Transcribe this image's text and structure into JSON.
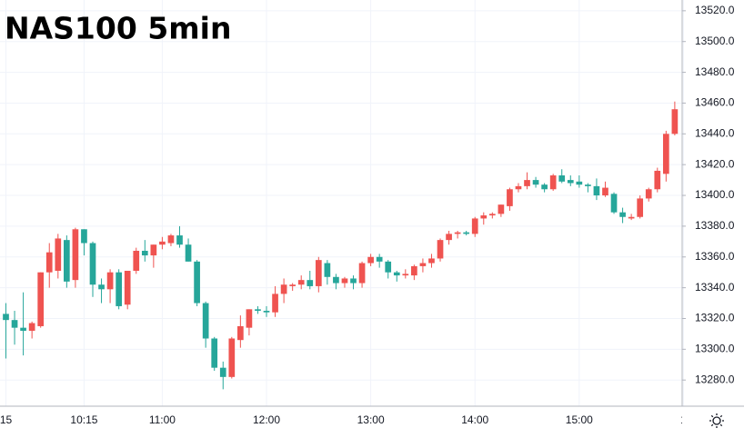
{
  "chart_data": {
    "type": "candlestick",
    "title": "NAS100 5min",
    "up_color": "#ef5350",
    "down_color": "#26a69a",
    "grid": true,
    "open": [
      13323,
      13319,
      13314,
      13312,
      13315,
      13350,
      13351,
      13371,
      13345,
      13378,
      13369,
      13342,
      13339,
      13350,
      13329,
      13351,
      13364,
      13361,
      13368,
      13369,
      13374,
      13368,
      13357,
      13330,
      13307,
      13288,
      13282,
      13306,
      13314,
      13326,
      13325,
      13324,
      13336,
      13341,
      13342,
      13345,
      13341,
      13356,
      13347,
      13343,
      13346,
      13343,
      13356,
      13360,
      13357,
      13350,
      13348,
      13348,
      13354,
      13356,
      13359,
      13371,
      13375,
      13376,
      13375,
      13385,
      13387,
      13388,
      13393,
      13404,
      13406,
      13410,
      13407,
      13404,
      13413,
      13410,
      13409,
      13407,
      13406,
      13400,
      13401,
      13389,
      13385,
      13386,
      13398,
      13404,
      13414,
      13440
    ],
    "high": [
      13330,
      13325,
      13337,
      13318,
      13350,
      13369,
      13375,
      13374,
      13379,
      13378,
      13370,
      13346,
      13352,
      13352,
      13351,
      13366,
      13371,
      13368,
      13373,
      13375,
      13380,
      13372,
      13358,
      13331,
      13308,
      13292,
      13308,
      13322,
      13326,
      13328,
      13328,
      13341,
      13346,
      13343,
      13348,
      13351,
      13360,
      13358,
      13349,
      13347,
      13348,
      13357,
      13362,
      13362,
      13358,
      13351,
      13352,
      13355,
      13359,
      13362,
      13372,
      13377,
      13377,
      13377,
      13386,
      13389,
      13389,
      13394,
      13405,
      13408,
      13415,
      13412,
      13408,
      13414,
      13417,
      13413,
      13413,
      13408,
      13411,
      13409,
      13402,
      13392,
      13388,
      13400,
      13405,
      13418,
      13442,
      13461
    ],
    "low": [
      13294,
      13303,
      13296,
      13307,
      13314,
      13340,
      13346,
      13340,
      13340,
      13361,
      13334,
      13330,
      13330,
      13326,
      13326,
      13349,
      13357,
      13353,
      13365,
      13367,
      13366,
      13357,
      13328,
      13301,
      13286,
      13274,
      13281,
      13301,
      13309,
      13323,
      13321,
      13321,
      13330,
      13338,
      13339,
      13339,
      13337,
      13342,
      13339,
      13340,
      13339,
      13340,
      13354,
      13353,
      13346,
      13344,
      13346,
      13345,
      13350,
      13353,
      13357,
      13368,
      13372,
      13374,
      13373,
      13381,
      13385,
      13386,
      13390,
      13402,
      13404,
      13405,
      13402,
      13403,
      13408,
      13406,
      13405,
      13402,
      13397,
      13399,
      13388,
      13382,
      13384,
      13385,
      13396,
      13402,
      13409,
      13439
    ],
    "close": [
      13319,
      13314,
      13312,
      13317,
      13350,
      13363,
      13372,
      13344,
      13378,
      13369,
      13342,
      13339,
      13350,
      13328,
      13351,
      13364,
      13361,
      13368,
      13370,
      13374,
      13368,
      13357,
      13330,
      13307,
      13288,
      13282,
      13307,
      13315,
      13326,
      13325,
      13324,
      13336,
      13342,
      13342,
      13345,
      13341,
      13358,
      13347,
      13343,
      13346,
      13343,
      13356,
      13360,
      13357,
      13350,
      13348,
      13349,
      13354,
      13356,
      13359,
      13371,
      13375,
      13376,
      13375,
      13385,
      13387,
      13388,
      13394,
      13404,
      13406,
      13410,
      13407,
      13404,
      13413,
      13409,
      13408,
      13407,
      13406,
      13400,
      13405,
      13389,
      13386,
      13386,
      13398,
      13404,
      13416,
      13440,
      13456
    ],
    "xlim": [
      -0.68,
      77.85
    ],
    "xticks": [
      {
        "value": 0,
        "label": "15"
      },
      {
        "value": 9,
        "label": "10:15"
      },
      {
        "value": 18,
        "label": "11:00"
      },
      {
        "value": 30,
        "label": "12:00"
      },
      {
        "value": 42,
        "label": "13:00"
      },
      {
        "value": 54,
        "label": "14:00"
      },
      {
        "value": 66,
        "label": "15:00"
      },
      {
        "value": 78,
        "label": "1"
      }
    ],
    "ylim": [
      13263,
      13527
    ],
    "yticks": [
      {
        "value": 13280,
        "label": "13280.0"
      },
      {
        "value": 13300,
        "label": "13300.0"
      },
      {
        "value": 13320,
        "label": "13320.0"
      },
      {
        "value": 13340,
        "label": "13340.0"
      },
      {
        "value": 13360,
        "label": "13360.0"
      },
      {
        "value": 13380,
        "label": "13380.0"
      },
      {
        "value": 13400,
        "label": "13400.0"
      },
      {
        "value": 13420,
        "label": "13420.0"
      },
      {
        "value": 13440,
        "label": "13440.0"
      },
      {
        "value": 13460,
        "label": "13460.0"
      },
      {
        "value": 13480,
        "label": "13480.0"
      },
      {
        "value": 13500,
        "label": "13500.0"
      },
      {
        "value": 13520,
        "label": "13520.0"
      }
    ]
  }
}
